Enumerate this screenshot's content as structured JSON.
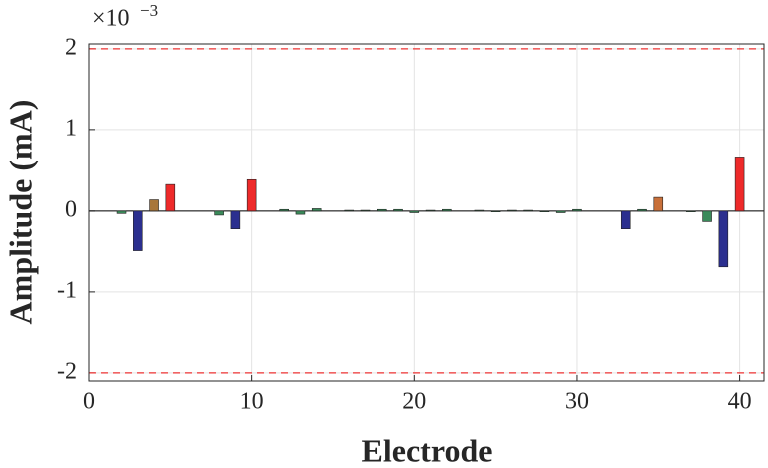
{
  "chart_data": {
    "type": "bar",
    "xlabel": "Electrode",
    "ylabel": "Amplitude (mA)",
    "y_multiplier": {
      "base": "×10",
      "exponent": "−3"
    },
    "x": [
      1,
      2,
      3,
      4,
      5,
      6,
      7,
      8,
      9,
      10,
      11,
      12,
      13,
      14,
      15,
      16,
      17,
      18,
      19,
      20,
      21,
      22,
      23,
      24,
      25,
      26,
      27,
      28,
      29,
      30,
      31,
      32,
      33,
      34,
      35,
      36,
      37,
      38,
      39,
      40
    ],
    "values": [
      0,
      -0.03,
      -0.49,
      0.14,
      0.33,
      0,
      0,
      -0.05,
      -0.22,
      0.39,
      0,
      0.02,
      -0.04,
      0.03,
      0,
      0.01,
      0.01,
      0.02,
      0.02,
      -0.02,
      0.01,
      0.02,
      0,
      0.01,
      -0.01,
      0.01,
      0.01,
      -0.01,
      -0.02,
      0.02,
      0,
      0,
      -0.22,
      0.02,
      0.17,
      0,
      -0.01,
      -0.13,
      -0.69,
      0.66
    ],
    "colors": [
      "#3a8a5a",
      "#3a8a5a",
      "#2b2f8f",
      "#a8763a",
      "#ee2a2a",
      "#3a8a5a",
      "#3a8a5a",
      "#3a8a5a",
      "#2b2f8f",
      "#ee2a2a",
      "#3a8a5a",
      "#3a8a5a",
      "#3a8a5a",
      "#3a8a5a",
      "#3a8a5a",
      "#3a8a5a",
      "#3a8a5a",
      "#3a8a5a",
      "#3a8a5a",
      "#3a8a5a",
      "#3a8a5a",
      "#3a8a5a",
      "#3a8a5a",
      "#3a8a5a",
      "#3a8a5a",
      "#3a8a5a",
      "#3a8a5a",
      "#3a8a5a",
      "#3a8a5a",
      "#3a8a5a",
      "#3a8a5a",
      "#3a8a5a",
      "#2b2f8f",
      "#3a8a5a",
      "#c8703a",
      "#3a8a5a",
      "#3a8a5a",
      "#3a8a5a",
      "#2b2f8f",
      "#ee2a2a"
    ],
    "thresholds": [
      2,
      -2
    ],
    "threshold_color": "#ee3333",
    "xlim": [
      0,
      41.5
    ],
    "ylim": [
      -2.1,
      2.06
    ],
    "xticks": [
      0,
      10,
      20,
      30,
      40
    ],
    "yticks": [
      -2,
      -1,
      0,
      1,
      2
    ],
    "grid": true
  }
}
